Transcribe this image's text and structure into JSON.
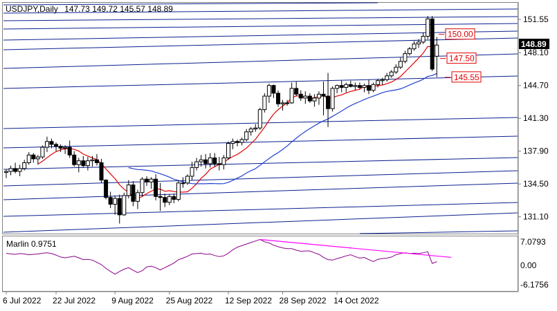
{
  "header": {
    "symbol_label": "USDJPY,Daily",
    "ohlc": "147.73 149.72 145.57 148.89"
  },
  "price_axis": {
    "ticks": [
      "151.55",
      "148.10",
      "144.70",
      "141.30",
      "137.90",
      "134.50",
      "131.10"
    ],
    "current_price": "148.89"
  },
  "levels": [
    {
      "label": "150.00",
      "value": 150.0
    },
    {
      "label": "147.50",
      "value": 147.5
    },
    {
      "label": "145.55",
      "value": 145.55
    }
  ],
  "oscillator": {
    "label": "Marlin 0.9751",
    "ticks": [
      "7.0793",
      "0.00",
      "-6.1756"
    ]
  },
  "time_axis": {
    "labels": [
      "6 Jul 2022",
      "22 Jul 2022",
      "9 Aug 2022",
      "25 Aug 2022",
      "12 Sep 2022",
      "28 Sep 2022",
      "14 Oct 2022"
    ]
  },
  "colors": {
    "background": "#ffffff",
    "grid_line": "#0a1f8f",
    "bullish_candle": "#ffffff",
    "bearish_candle": "#000000",
    "ma_red": "#e00000",
    "ma_blue": "#1f3fd0",
    "oscillator_line": "#8b008b",
    "divergence_line": "#ff00ff",
    "level_label": "#e00000"
  },
  "chart_data": {
    "type": "candlestick",
    "symbol": "USDJPY",
    "timeframe": "Daily",
    "last_bar": {
      "open": 147.73,
      "high": 149.72,
      "low": 145.57,
      "close": 148.89
    },
    "ylim": [
      129.5,
      153.2
    ],
    "levels": [
      150.0,
      147.5,
      145.55
    ],
    "bars": [
      [
        135.7,
        136.0,
        135.1,
        135.8
      ],
      [
        135.8,
        136.4,
        135.4,
        136.1
      ],
      [
        136.1,
        136.7,
        135.6,
        135.8
      ],
      [
        135.8,
        136.5,
        135.3,
        136.1
      ],
      [
        136.1,
        137.0,
        135.9,
        136.7
      ],
      [
        136.7,
        137.8,
        136.5,
        137.5
      ],
      [
        137.5,
        137.7,
        136.7,
        137.1
      ],
      [
        137.1,
        137.5,
        136.5,
        137.3
      ],
      [
        137.3,
        138.5,
        137.1,
        138.3
      ],
      [
        138.3,
        139.4,
        137.8,
        138.9
      ],
      [
        138.9,
        139.2,
        138.2,
        138.6
      ],
      [
        138.6,
        138.8,
        137.9,
        138.4
      ],
      [
        138.4,
        138.6,
        137.8,
        138.2
      ],
      [
        138.2,
        138.5,
        137.6,
        138.3
      ],
      [
        138.3,
        139.0,
        137.2,
        137.5
      ],
      [
        137.5,
        137.9,
        136.3,
        136.5
      ],
      [
        136.5,
        137.2,
        135.7,
        136.9
      ],
      [
        136.9,
        137.4,
        136.2,
        136.4
      ],
      [
        136.4,
        137.3,
        135.9,
        136.9
      ],
      [
        136.9,
        137.4,
        136.3,
        137.0
      ],
      [
        137.0,
        137.6,
        136.4,
        136.7
      ],
      [
        136.7,
        137.1,
        134.6,
        134.9
      ],
      [
        134.9,
        135.0,
        132.9,
        133.1
      ],
      [
        133.1,
        133.7,
        132.0,
        132.4
      ],
      [
        132.4,
        133.3,
        131.3,
        133.0
      ],
      [
        133.0,
        133.4,
        130.4,
        131.3
      ],
      [
        131.3,
        133.6,
        131.2,
        133.3
      ],
      [
        133.3,
        134.9,
        133.0,
        134.4
      ],
      [
        134.4,
        134.8,
        132.2,
        132.7
      ],
      [
        132.7,
        133.9,
        131.9,
        133.6
      ],
      [
        133.6,
        135.2,
        133.2,
        135.0
      ],
      [
        135.0,
        135.3,
        134.3,
        134.7
      ],
      [
        134.7,
        135.2,
        134.0,
        135.0
      ],
      [
        135.0,
        135.5,
        132.8,
        133.2
      ],
      [
        133.2,
        134.6,
        131.7,
        133.1
      ],
      [
        133.1,
        133.5,
        132.1,
        132.6
      ],
      [
        132.6,
        133.4,
        132.3,
        133.2
      ],
      [
        133.2,
        133.5,
        132.5,
        132.9
      ],
      [
        132.9,
        134.9,
        132.7,
        134.6
      ],
      [
        134.6,
        135.2,
        134.1,
        134.6
      ],
      [
        134.6,
        135.5,
        134.4,
        135.3
      ],
      [
        135.3,
        136.8,
        134.9,
        136.2
      ],
      [
        136.2,
        137.2,
        135.9,
        136.8
      ],
      [
        136.8,
        137.5,
        136.3,
        137.0
      ],
      [
        137.0,
        137.6,
        136.1,
        136.6
      ],
      [
        136.6,
        137.7,
        136.2,
        137.2
      ],
      [
        137.2,
        137.7,
        136.3,
        136.6
      ],
      [
        136.6,
        137.3,
        135.9,
        136.5
      ],
      [
        136.5,
        137.5,
        136.0,
        137.2
      ],
      [
        137.2,
        138.9,
        137.0,
        138.7
      ],
      [
        138.7,
        139.2,
        138.1,
        138.9
      ],
      [
        138.9,
        139.1,
        138.4,
        138.8
      ],
      [
        138.8,
        139.3,
        138.5,
        139.1
      ],
      [
        139.1,
        140.2,
        138.9,
        139.9
      ],
      [
        139.9,
        140.4,
        139.5,
        140.2
      ],
      [
        140.2,
        140.7,
        139.9,
        140.3
      ],
      [
        140.3,
        142.4,
        140.1,
        142.2
      ],
      [
        142.2,
        143.9,
        141.9,
        143.6
      ],
      [
        143.6,
        144.9,
        142.9,
        144.7
      ],
      [
        144.7,
        144.8,
        143.4,
        143.9
      ],
      [
        143.9,
        144.2,
        142.5,
        142.8
      ],
      [
        142.8,
        143.2,
        142.1,
        142.9
      ],
      [
        142.9,
        143.2,
        142.6,
        142.9
      ],
      [
        142.9,
        145.0,
        142.8,
        144.4
      ],
      [
        144.4,
        145.1,
        143.6,
        143.8
      ],
      [
        143.8,
        144.2,
        143.1,
        143.4
      ],
      [
        143.4,
        144.1,
        142.8,
        143.6
      ],
      [
        143.6,
        143.9,
        142.9,
        143.1
      ],
      [
        143.1,
        143.8,
        142.5,
        143.4
      ],
      [
        143.4,
        144.1,
        142.7,
        143.8
      ],
      [
        143.8,
        145.1,
        141.6,
        143.6
      ],
      [
        143.6,
        146.0,
        140.4,
        142.3
      ],
      [
        142.3,
        144.6,
        142.0,
        144.4
      ],
      [
        144.4,
        144.8,
        143.9,
        144.7
      ],
      [
        144.7,
        145.2,
        144.0,
        144.5
      ],
      [
        144.5,
        145.0,
        144.0,
        144.8
      ],
      [
        144.8,
        145.2,
        144.5,
        144.6
      ],
      [
        144.6,
        145.0,
        144.2,
        144.7
      ],
      [
        144.7,
        145.0,
        144.3,
        144.5
      ],
      [
        144.5,
        144.9,
        144.0,
        144.7
      ],
      [
        144.7,
        145.3,
        143.8,
        144.2
      ],
      [
        144.2,
        145.0,
        144.0,
        144.8
      ],
      [
        144.8,
        145.4,
        144.5,
        145.2
      ],
      [
        145.2,
        145.5,
        144.8,
        145.3
      ],
      [
        145.3,
        146.0,
        145.1,
        145.7
      ],
      [
        145.7,
        146.3,
        145.5,
        146.1
      ],
      [
        146.1,
        146.9,
        145.9,
        146.6
      ],
      [
        146.6,
        147.6,
        146.4,
        147.2
      ],
      [
        147.2,
        148.3,
        147.0,
        148.0
      ],
      [
        148.0,
        148.7,
        147.8,
        148.5
      ],
      [
        148.5,
        149.3,
        148.3,
        149.0
      ],
      [
        149.0,
        149.5,
        148.6,
        149.2
      ],
      [
        149.2,
        150.2,
        149.0,
        149.8
      ],
      [
        149.8,
        151.9,
        149.5,
        151.6
      ],
      [
        151.6,
        151.9,
        146.2,
        146.4
      ],
      [
        147.73,
        149.72,
        145.57,
        148.89
      ]
    ],
    "series": [
      {
        "label": "red moving average"
      },
      {
        "label": "blue moving average"
      }
    ]
  }
}
